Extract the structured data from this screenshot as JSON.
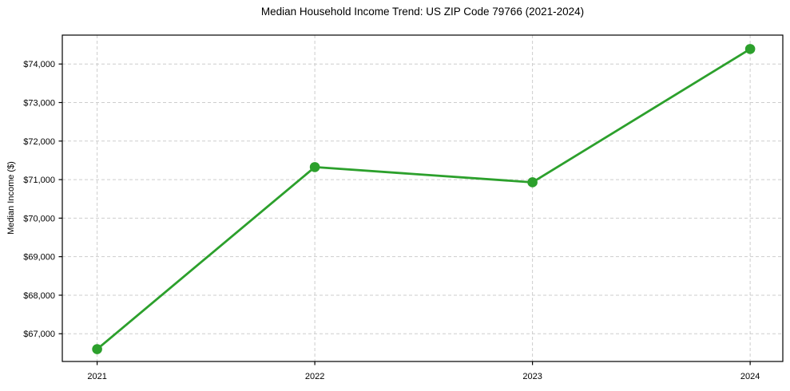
{
  "chart_data": {
    "type": "line",
    "title": "Median Household Income Trend: US ZIP Code 79766 (2021-2024)",
    "xlabel": "",
    "ylabel": "Median Income ($)",
    "categories": [
      "2021",
      "2022",
      "2023",
      "2024"
    ],
    "x": [
      2021,
      2022,
      2023,
      2024
    ],
    "values": [
      66600,
      71325,
      70930,
      74390
    ],
    "y_ticks": [
      67000,
      68000,
      69000,
      70000,
      71000,
      72000,
      73000,
      74000
    ],
    "y_tick_labels": [
      "$67,000",
      "$68,000",
      "$69,000",
      "$70,000",
      "$71,000",
      "$72,000",
      "$73,000",
      "$74,000"
    ],
    "xlim": [
      2020.84,
      2024.15
    ],
    "ylim": [
      66280,
      74750
    ],
    "grid": true,
    "grid_style": "dashed",
    "legend": false,
    "line_color": "#2ca02c",
    "marker": "circle",
    "marker_color": "#2ca02c",
    "background_color": "#ffffff"
  }
}
